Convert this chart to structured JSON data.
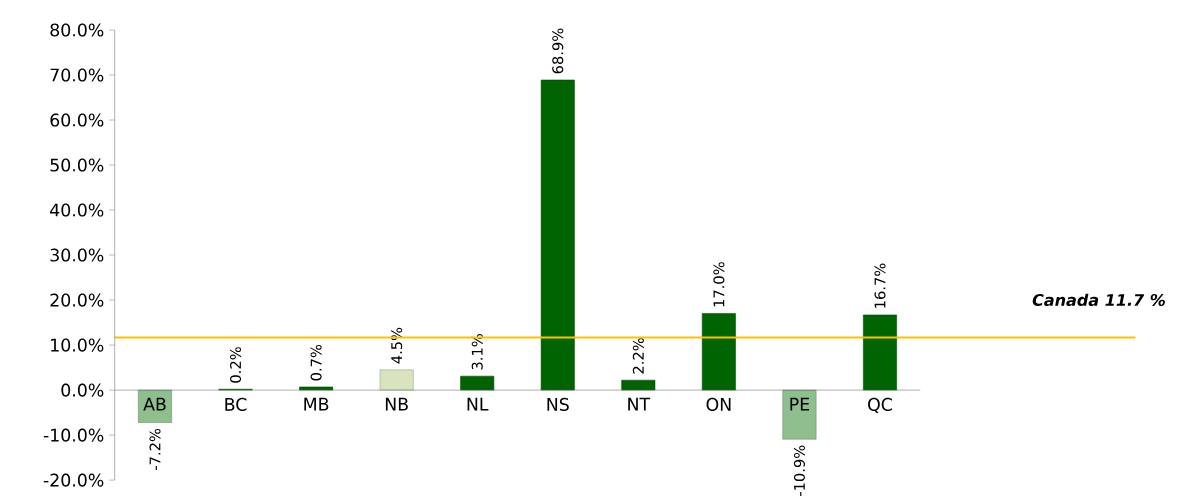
{
  "chart_data": {
    "type": "bar",
    "categories": [
      "AB",
      "BC",
      "MB",
      "NB",
      "NL",
      "NS",
      "NT",
      "ON",
      "PE",
      "QC"
    ],
    "values": [
      -7.2,
      0.2,
      0.7,
      4.5,
      3.1,
      68.9,
      2.2,
      17.0,
      -10.9,
      16.7
    ],
    "value_labels": [
      "-7.2%",
      "0.2%",
      "0.7%",
      "4.5%",
      "3.1%",
      "68.9%",
      "2.2%",
      "17.0%",
      "-10.9%",
      "16.7%"
    ],
    "colors": [
      "#8fbf8f",
      "#006400",
      "#006400",
      "#d7e4bd",
      "#006400",
      "#006400",
      "#006400",
      "#006400",
      "#8fbf8f",
      "#006400"
    ],
    "ylim": [
      -20,
      80
    ],
    "yticks": [
      {
        "value": -20,
        "label": "-20.0%"
      },
      {
        "value": -10,
        "label": "-10.0%"
      },
      {
        "value": 0,
        "label": "0.0%"
      },
      {
        "value": 10,
        "label": "10.0%"
      },
      {
        "value": 20,
        "label": "20.0%"
      },
      {
        "value": 30,
        "label": "30.0%"
      },
      {
        "value": 40,
        "label": "40.0%"
      },
      {
        "value": 50,
        "label": "50.0%"
      },
      {
        "value": 60,
        "label": "60.0%"
      },
      {
        "value": 70,
        "label": "70.0%"
      },
      {
        "value": 80,
        "label": "80.0%"
      }
    ],
    "ref_lines": [
      {
        "axis": "y",
        "value": 11.7,
        "label": "Canada 11.7 %",
        "color": "#ffc000"
      }
    ]
  }
}
